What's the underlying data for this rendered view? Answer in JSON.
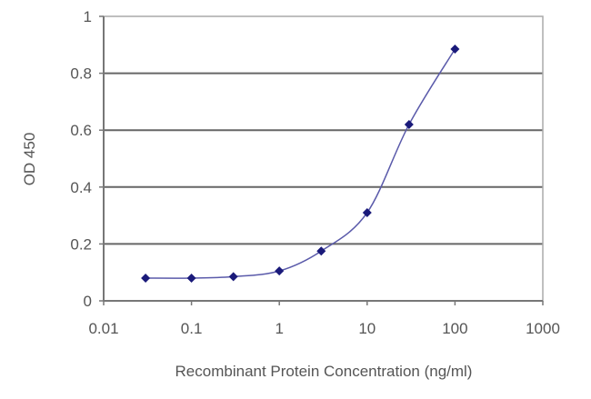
{
  "chart_data": {
    "type": "line",
    "title": "",
    "xlabel": "Recombinant Protein Concentration (ng/ml)",
    "ylabel": "OD 450",
    "x_scale": "log",
    "xlim": [
      0.01,
      1000
    ],
    "ylim": [
      0,
      1
    ],
    "x_ticks": [
      "0.01",
      "0.1",
      "1",
      "10",
      "100",
      "1000"
    ],
    "y_ticks": [
      "0",
      "0.2",
      "0.4",
      "0.6",
      "0.8",
      "1"
    ],
    "grid": "horizontal",
    "series": [
      {
        "x": [
          0.03,
          0.1,
          0.3,
          1,
          3,
          10,
          30,
          100
        ],
        "y": [
          0.08,
          0.08,
          0.085,
          0.105,
          0.175,
          0.31,
          0.62,
          0.885
        ],
        "color": "#1a1a7a",
        "line_color": "#5a5aaa"
      }
    ]
  }
}
